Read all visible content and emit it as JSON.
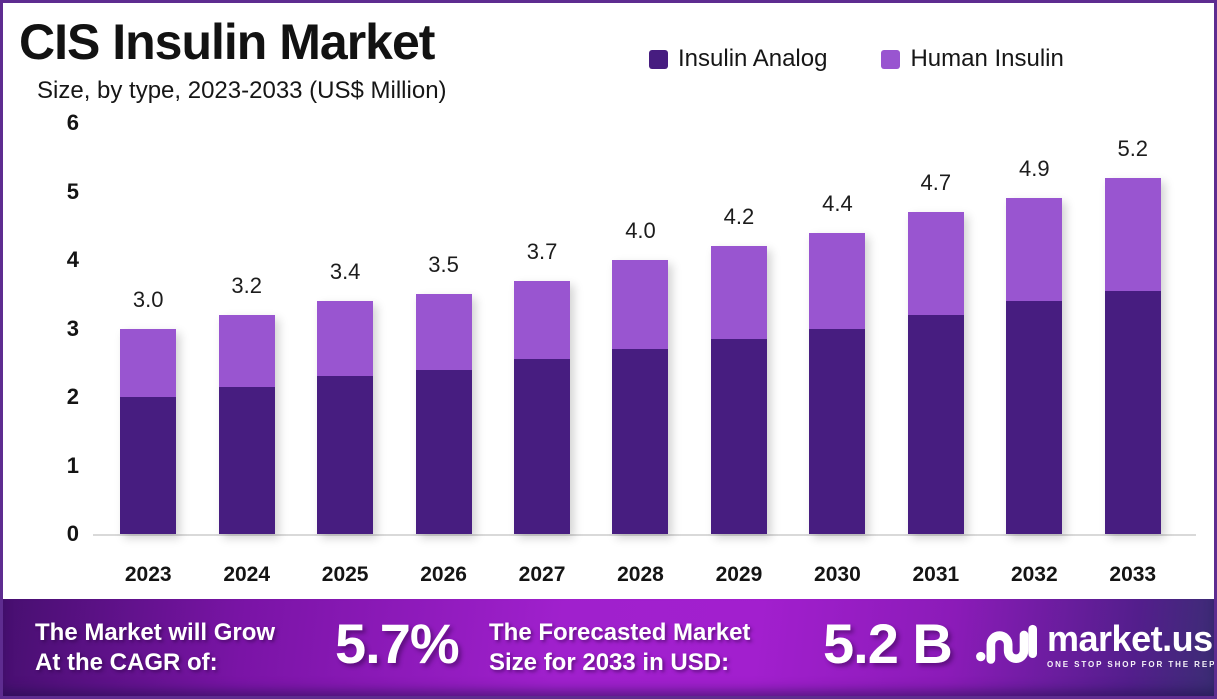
{
  "header": {
    "title": "CIS Insulin Market",
    "subtitle": "Size, by type, 2023-2033 (US$ Million)"
  },
  "colors": {
    "insulin_analog": "#471d80",
    "human_insulin": "#9955d0",
    "border": "#5e2c90",
    "axis_line": "#d9d9d9"
  },
  "legend": [
    {
      "label": "Insulin Analog",
      "color": "#471d80"
    },
    {
      "label": "Human Insulin",
      "color": "#9955d0"
    }
  ],
  "chart_data": {
    "type": "bar",
    "stacked": true,
    "title": "CIS Insulin Market",
    "subtitle": "Size, by type, 2023-2033 (US$ Million)",
    "xlabel": "",
    "ylabel": "US$ Million",
    "ylim": [
      0,
      6
    ],
    "y_ticks": [
      0,
      1,
      2,
      3,
      4,
      5,
      6
    ],
    "grid": false,
    "legend_position": "top-right",
    "categories": [
      "2023",
      "2024",
      "2025",
      "2026",
      "2027",
      "2028",
      "2029",
      "2030",
      "2031",
      "2032",
      "2033"
    ],
    "series": [
      {
        "name": "Insulin Analog",
        "color": "#471d80",
        "values": [
          2.0,
          2.15,
          2.3,
          2.4,
          2.55,
          2.7,
          2.85,
          3.0,
          3.2,
          3.4,
          3.55
        ]
      },
      {
        "name": "Human Insulin",
        "color": "#9955d0",
        "values": [
          1.0,
          1.05,
          1.1,
          1.1,
          1.15,
          1.3,
          1.35,
          1.4,
          1.5,
          1.5,
          1.65
        ]
      }
    ],
    "total_labels": [
      "3.0",
      "3.2",
      "3.4",
      "3.5",
      "3.7",
      "4.0",
      "4.2",
      "4.4",
      "4.7",
      "4.9",
      "5.2"
    ]
  },
  "banner": {
    "cagr_label_line1": "The Market will Grow",
    "cagr_label_line2": "At the CAGR of:",
    "cagr_value": "5.7%",
    "forecast_label_line1": "The Forecasted Market",
    "forecast_label_line2": "Size for 2033 in USD:",
    "forecast_value": "5.2 B"
  },
  "logo": {
    "name": "market.us",
    "tagline": "ONE STOP SHOP FOR THE REPORTS"
  }
}
